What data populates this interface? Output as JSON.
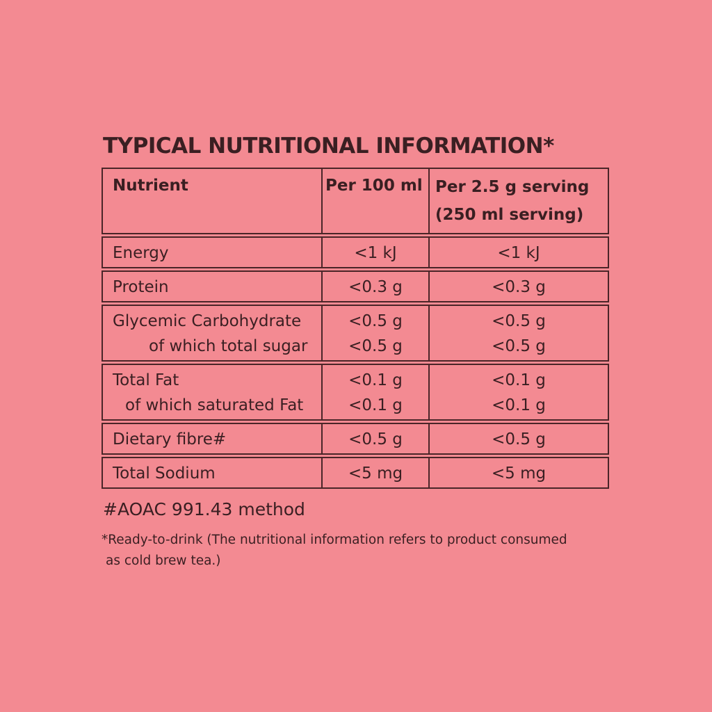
{
  "title": "TYPICAL NUTRITIONAL INFORMATION*",
  "headers": {
    "nutrient": "Nutrient",
    "per100": "Per 100 ml",
    "serving_line1": "Per 2.5 g serving",
    "serving_line2": "(250 ml serving)"
  },
  "rows": [
    {
      "name": "Energy",
      "per100": "<1 kJ",
      "serving": "<1 kJ"
    },
    {
      "name": "Protein",
      "per100": "<0.3 g",
      "serving": "<0.3 g"
    },
    {
      "name": "Glycemic Carbohydrate",
      "sub": "of which total sugar",
      "per100": "<0.5 g",
      "per100_sub": "<0.5 g",
      "serving": "<0.5 g",
      "serving_sub": "<0.5 g"
    },
    {
      "name": "Total Fat",
      "sub": "of which saturated Fat",
      "per100": "<0.1 g",
      "per100_sub": "<0.1 g",
      "serving": "<0.1 g",
      "serving_sub": "<0.1 g"
    },
    {
      "name": "Dietary fibre#",
      "per100": "<0.5 g",
      "serving": "<0.5 g"
    },
    {
      "name": "Total Sodium",
      "per100": "<5 mg",
      "serving": "<5 mg"
    }
  ],
  "footnote_method": "#AOAC 991.43 method",
  "footnote_ready_line1": "*Ready-to-drink (The nutritional information refers to product consumed",
  "footnote_ready_line2": "as cold brew tea.)",
  "colors": {
    "background": "#f38a92",
    "text": "#3a1f22",
    "border": "#4a2528"
  }
}
